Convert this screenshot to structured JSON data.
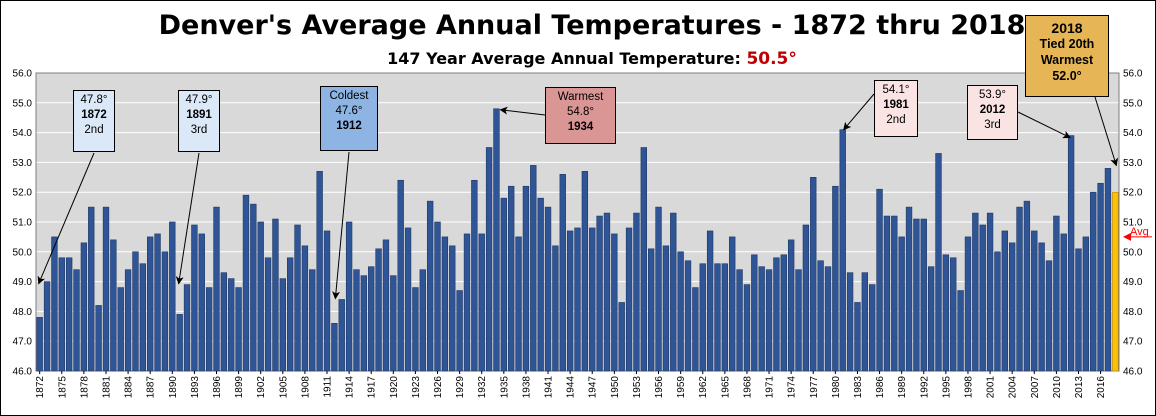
{
  "chart_data": {
    "type": "bar",
    "title": "Denver's Average Annual Temperatures - 1872 thru 2018",
    "subtitle": "147 Year Average Annual Temperature:",
    "subtitle_value": "50.5°",
    "ylim": [
      46.0,
      56.0
    ],
    "y_ticks": [
      "46.0",
      "47.0",
      "48.0",
      "49.0",
      "50.0",
      "51.0",
      "52.0",
      "53.0",
      "54.0",
      "55.0",
      "56.0"
    ],
    "grid": true,
    "average_value": 50.5,
    "average_label": "Avg",
    "x_start": 1872,
    "x_tick_labels": [
      "1872",
      "1875",
      "1878",
      "1881",
      "1884",
      "1887",
      "1890",
      "1893",
      "1896",
      "1899",
      "1902",
      "1905",
      "1908",
      "1911",
      "1914",
      "1917",
      "1920",
      "1923",
      "1926",
      "1929",
      "1932",
      "1935",
      "1938",
      "1941",
      "1944",
      "1947",
      "1950",
      "1953",
      "1956",
      "1959",
      "1962",
      "1965",
      "1968",
      "1971",
      "1974",
      "1977",
      "1980",
      "1983",
      "1986",
      "1989",
      "1992",
      "1995",
      "1998",
      "2001",
      "2004",
      "2007",
      "2010",
      "2013",
      "2016"
    ],
    "values": [
      47.8,
      49.0,
      50.5,
      49.8,
      49.8,
      49.4,
      50.3,
      51.5,
      48.2,
      51.5,
      50.4,
      48.8,
      49.4,
      50.0,
      49.6,
      50.5,
      50.6,
      50.0,
      51.0,
      47.9,
      48.9,
      50.9,
      50.6,
      48.8,
      51.5,
      49.3,
      49.1,
      48.8,
      51.9,
      51.6,
      51.0,
      49.8,
      51.1,
      49.1,
      49.8,
      50.9,
      50.2,
      49.4,
      52.7,
      50.7,
      47.6,
      48.4,
      51.0,
      49.4,
      49.2,
      49.5,
      50.1,
      50.4,
      49.2,
      52.4,
      50.8,
      48.8,
      49.4,
      51.7,
      51.0,
      50.5,
      50.2,
      48.7,
      50.6,
      52.4,
      50.6,
      53.5,
      54.8,
      51.8,
      52.2,
      50.5,
      52.2,
      52.9,
      51.8,
      51.5,
      50.2,
      52.6,
      50.7,
      50.8,
      52.7,
      50.8,
      51.2,
      51.3,
      50.6,
      48.3,
      50.8,
      51.3,
      53.5,
      50.1,
      51.5,
      50.2,
      51.3,
      50.0,
      49.7,
      48.8,
      49.6,
      50.7,
      49.6,
      49.6,
      50.5,
      49.4,
      48.9,
      49.9,
      49.5,
      49.4,
      49.8,
      49.9,
      50.4,
      49.4,
      50.9,
      52.5,
      49.7,
      49.5,
      52.2,
      54.1,
      49.3,
      48.3,
      49.3,
      48.9,
      52.1,
      51.2,
      51.2,
      50.5,
      51.5,
      51.1,
      51.1,
      49.5,
      53.3,
      49.9,
      49.8,
      48.7,
      50.5,
      51.3,
      50.9,
      51.3,
      50.0,
      50.7,
      50.3,
      51.5,
      51.7,
      50.7,
      50.3,
      49.7,
      51.2,
      50.6,
      53.9,
      50.1,
      50.5,
      52.0,
      52.3,
      52.8,
      52.0
    ],
    "highlight_year": 2018,
    "bar_color": "#2f5597",
    "highlight_color": "#ffc000",
    "avg_line_color": "#ff0000",
    "annotations": [
      {
        "id": "1872",
        "lines": [
          "47.8°",
          "1872",
          "2nd"
        ],
        "bold": [
          false,
          true,
          false
        ],
        "bg": "#dbe8f7",
        "year": 1872
      },
      {
        "id": "1891",
        "lines": [
          "47.9°",
          "1891",
          "3rd"
        ],
        "bold": [
          false,
          true,
          false
        ],
        "bg": "#dbe8f7",
        "year": 1891
      },
      {
        "id": "1912",
        "lines": [
          "Coldest",
          "47.6°",
          "1912"
        ],
        "bold": [
          false,
          false,
          true
        ],
        "bg": "#8db4e2",
        "year": 1912
      },
      {
        "id": "1934",
        "lines": [
          "Warmest",
          "54.8°",
          "1934"
        ],
        "bold": [
          false,
          false,
          true
        ],
        "bg": "#da9694",
        "year": 1934
      },
      {
        "id": "1981",
        "lines": [
          "54.1°",
          "1981",
          "2nd"
        ],
        "bold": [
          false,
          true,
          false
        ],
        "bg": "#f9e3e3",
        "year": 1981
      },
      {
        "id": "2012",
        "lines": [
          "53.9°",
          "2012",
          "3rd"
        ],
        "bold": [
          false,
          true,
          false
        ],
        "bg": "#f9e3e3",
        "year": 2012
      },
      {
        "id": "2018",
        "lines": [
          "2018",
          "Tied 20th",
          "Warmest",
          "52.0°"
        ],
        "bold": [
          true,
          true,
          true,
          true
        ],
        "bg": "#e6b656",
        "year": 2018
      }
    ]
  }
}
